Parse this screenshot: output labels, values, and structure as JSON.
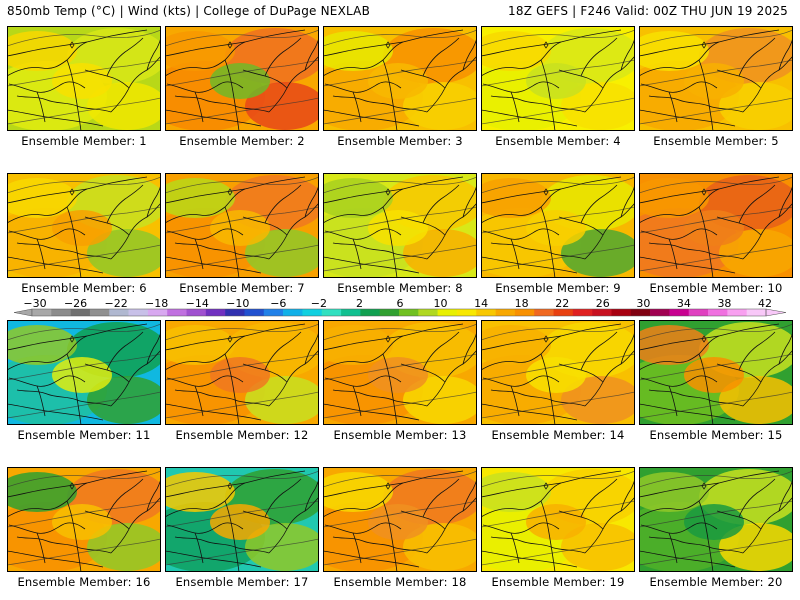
{
  "header": {
    "title": "850mb Temp (°C) | Wind (kts) | College of DuPage NEXLAB",
    "run_info": "18Z GEFS | F246 Valid: 00Z THU JUN 19 2025"
  },
  "colorbar": {
    "ticks": [
      "−30",
      "−26",
      "−22",
      "−18",
      "−14",
      "−10",
      "−6",
      "−2",
      "2",
      "6",
      "10",
      "14",
      "18",
      "22",
      "26",
      "30",
      "34",
      "38",
      "42"
    ],
    "colors": [
      "#a8a8a8",
      "#8c8c8c",
      "#707070",
      "#909090",
      "#b0b8d0",
      "#c8c0e8",
      "#d8a8f0",
      "#c070e0",
      "#a050d0",
      "#7030c0",
      "#3030b0",
      "#2050d0",
      "#2080e8",
      "#10b0e8",
      "#10d0e0",
      "#30e0c0",
      "#10c090",
      "#10a050",
      "#30a030",
      "#70c020",
      "#b0d820",
      "#e8f000",
      "#f8e800",
      "#f8c800",
      "#f8a800",
      "#f89000",
      "#f06820",
      "#e84010",
      "#e02020",
      "#c81020",
      "#a80010",
      "#800010",
      "#a00050",
      "#c80090",
      "#e040c0",
      "#f070e0",
      "#f8a0f0",
      "#f8c8f8"
    ]
  },
  "members": [
    {
      "label": "Ensemble Member: 1",
      "palette": [
        "#b8d818",
        "#e0ec10",
        "#d8e818",
        "#f0e800",
        "#f8d800",
        "#f8e000"
      ]
    },
    {
      "label": "Ensemble Member: 2",
      "palette": [
        "#f8a800",
        "#f88800",
        "#f07020",
        "#e84818",
        "#f89800",
        "#70b828"
      ]
    },
    {
      "label": "Ensemble Member: 3",
      "palette": [
        "#f8c000",
        "#f8a800",
        "#f89000",
        "#f8d000",
        "#e8e800",
        "#f8b800"
      ]
    },
    {
      "label": "Ensemble Member: 4",
      "palette": [
        "#f8f000",
        "#e8f000",
        "#d8e818",
        "#f8e000",
        "#f8d800",
        "#c8e020"
      ]
    },
    {
      "label": "Ensemble Member: 5",
      "palette": [
        "#f8c000",
        "#f8a800",
        "#f09020",
        "#f8d000",
        "#f8e000",
        "#f8b000"
      ]
    },
    {
      "label": "Ensemble Member: 6",
      "palette": [
        "#f8c000",
        "#f8b000",
        "#c8e020",
        "#90c828",
        "#f8d800",
        "#f8a000"
      ]
    },
    {
      "label": "Ensemble Member: 7",
      "palette": [
        "#f8a000",
        "#f89000",
        "#f07820",
        "#90c828",
        "#b8d818",
        "#f8b800"
      ]
    },
    {
      "label": "Ensemble Member: 8",
      "palette": [
        "#d8e818",
        "#c8e020",
        "#f8c800",
        "#f8b000",
        "#a8d020",
        "#f8e000"
      ]
    },
    {
      "label": "Ensemble Member: 9",
      "palette": [
        "#f8b800",
        "#f8c800",
        "#e8e800",
        "#50a830",
        "#f8a000",
        "#f8d000"
      ]
    },
    {
      "label": "Ensemble Member: 10",
      "palette": [
        "#f89000",
        "#f07820",
        "#e86018",
        "#f8a800",
        "#f89800",
        "#f08018"
      ]
    },
    {
      "label": "Ensemble Member: 11",
      "palette": [
        "#10b8e0",
        "#20c0a0",
        "#10a050",
        "#30a030",
        "#90c828",
        "#e0ec10"
      ]
    },
    {
      "label": "Ensemble Member: 12",
      "palette": [
        "#f8a800",
        "#f89000",
        "#f8b800",
        "#c8e020",
        "#f8c000",
        "#f07820"
      ]
    },
    {
      "label": "Ensemble Member: 13",
      "palette": [
        "#f8a800",
        "#f89000",
        "#f8c000",
        "#f8d800",
        "#f8b000",
        "#f09020"
      ]
    },
    {
      "label": "Ensemble Member: 14",
      "palette": [
        "#f8c000",
        "#f8a800",
        "#f8d800",
        "#f09020",
        "#f8b000",
        "#f8e000"
      ]
    },
    {
      "label": "Ensemble Member: 15",
      "palette": [
        "#30a030",
        "#70c020",
        "#c8e020",
        "#f8c000",
        "#f08018",
        "#f89000"
      ]
    },
    {
      "label": "Ensemble Member: 16",
      "palette": [
        "#f8a800",
        "#f89000",
        "#f07820",
        "#90c828",
        "#30a030",
        "#f8c000"
      ]
    },
    {
      "label": "Ensemble Member: 17",
      "palette": [
        "#20c8b0",
        "#10a060",
        "#30a030",
        "#90c828",
        "#f8c800",
        "#f8a800"
      ]
    },
    {
      "label": "Ensemble Member: 18",
      "palette": [
        "#f8a800",
        "#f89000",
        "#f07820",
        "#f8c000",
        "#f8d800",
        "#f09020"
      ]
    },
    {
      "label": "Ensemble Member: 19",
      "palette": [
        "#f8e800",
        "#e8f000",
        "#f8d000",
        "#f8c000",
        "#c8e020",
        "#f8b000"
      ]
    },
    {
      "label": "Ensemble Member: 20",
      "palette": [
        "#30a030",
        "#50b028",
        "#c8e020",
        "#f8d800",
        "#90c828",
        "#1a9a40"
      ]
    }
  ]
}
